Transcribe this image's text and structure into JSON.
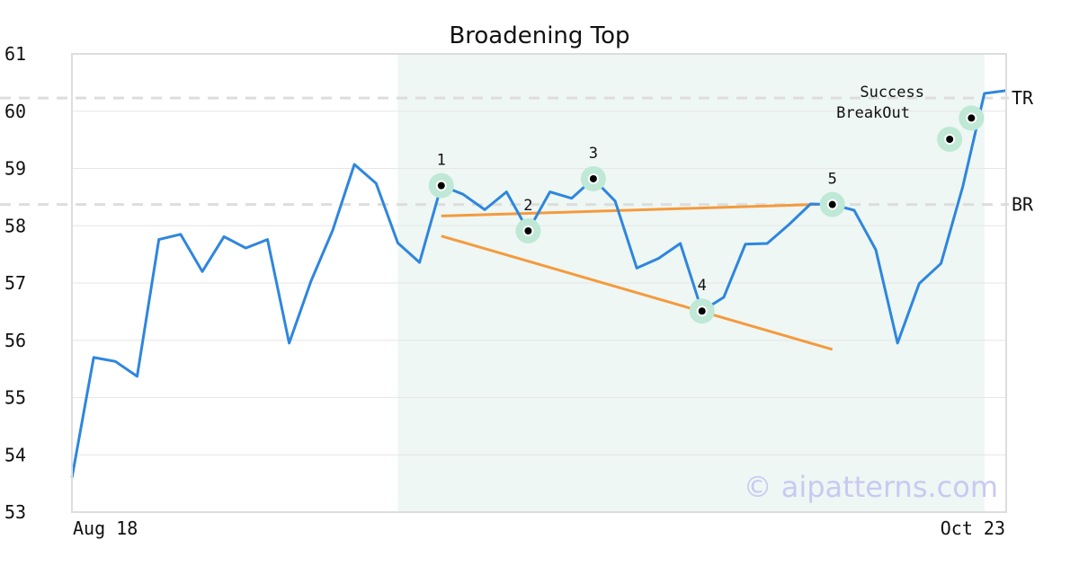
{
  "chart_data": {
    "type": "line",
    "title": "Broadening Top",
    "xlabel": "",
    "ylabel": "",
    "x_tick_labels": [
      "Aug 18",
      "Oct 23"
    ],
    "ylim": [
      53,
      61
    ],
    "yticks": [
      53,
      54,
      55,
      56,
      57,
      58,
      59,
      60,
      61
    ],
    "grid": true,
    "series": [
      {
        "color": "#2e86de",
        "values": [
          53.6,
          55.7,
          55.63,
          55.37,
          57.76,
          57.85,
          57.2,
          57.81,
          57.61,
          57.76,
          55.95,
          57.03,
          57.92,
          59.07,
          58.74,
          57.7,
          57.36,
          58.7,
          58.55,
          58.28,
          58.59,
          57.91,
          58.59,
          58.48,
          58.82,
          58.43,
          57.26,
          57.43,
          57.69,
          56.51,
          56.75,
          57.68,
          57.69,
          58.02,
          58.38,
          58.37,
          58.27,
          57.58,
          55.95,
          56.99,
          57.34,
          58.68,
          60.31,
          60.36
        ]
      }
    ],
    "highlight_region": {
      "from_index": 15,
      "to_index": 42,
      "color": "#eef7f3"
    },
    "pattern_points": [
      {
        "label": "1",
        "index": 17,
        "value": 58.7
      },
      {
        "label": "2",
        "index": 21,
        "value": 57.91
      },
      {
        "label": "3",
        "index": 24,
        "value": 58.82
      },
      {
        "label": "4",
        "index": 29,
        "value": 56.51
      },
      {
        "label": "5",
        "index": 35,
        "value": 58.37
      }
    ],
    "event_points": [
      {
        "label": "BreakOut",
        "index": 40.4,
        "value": 59.51
      },
      {
        "label": "Success",
        "index": 41.4,
        "value": 59.88
      }
    ],
    "trendlines": [
      {
        "color": "#f59a3e",
        "from": {
          "index": 17,
          "value": 58.17
        },
        "to": {
          "index": 35,
          "value": 58.38
        }
      },
      {
        "color": "#f59a3e",
        "from": {
          "index": 17,
          "value": 57.82
        },
        "to": {
          "index": 35,
          "value": 55.84
        }
      }
    ],
    "levels": [
      {
        "label": "TR",
        "value": 60.23
      },
      {
        "label": "BR",
        "value": 58.37
      }
    ],
    "watermark": "© aipatterns.com",
    "colors": {
      "marker_halo": "#bfe8d6",
      "marker_dot": "#000000",
      "level_line": "#dddddd",
      "frame": "#dddddd",
      "grid": "#e6e6e6"
    }
  }
}
